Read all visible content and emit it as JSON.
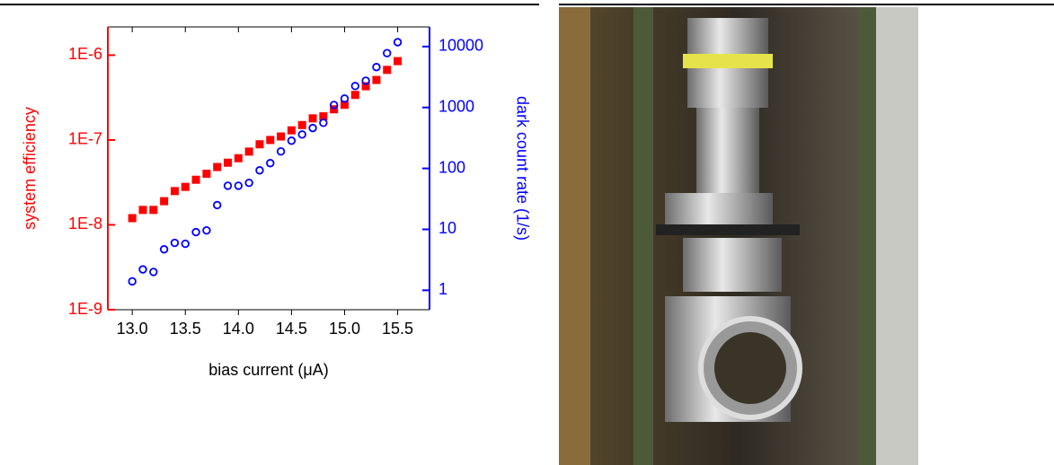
{
  "chart_data": {
    "type": "scatter",
    "xlabel": "bias current (μA)",
    "ylabel": "system efficiency",
    "y2label": "dark count rate (1/s)",
    "ylabel_color": "#ff0000",
    "y2label_color": "#0000ff",
    "x": [
      13.0,
      13.1,
      13.2,
      13.3,
      13.4,
      13.5,
      13.6,
      13.7,
      13.8,
      13.9,
      14.0,
      14.1,
      14.2,
      14.3,
      14.4,
      14.5,
      14.6,
      14.7,
      14.8,
      14.9,
      15.0,
      15.1,
      15.2,
      15.3,
      15.4,
      15.5
    ],
    "series": [
      {
        "color": "#ff0000",
        "marker": "square",
        "axis": "y",
        "values": [
          1.2e-08,
          1.5e-08,
          1.5e-08,
          1.9e-08,
          2.5e-08,
          2.8e-08,
          3.4e-08,
          4e-08,
          4.8e-08,
          5.4e-08,
          6.1e-08,
          7.3e-08,
          8.9e-08,
          1e-07,
          1.1e-07,
          1.3e-07,
          1.5e-07,
          1.8e-07,
          1.9e-07,
          2.3e-07,
          2.6e-07,
          3.4e-07,
          4.3e-07,
          5.1e-07,
          6.7e-07,
          8.5e-07
        ]
      },
      {
        "color": "#0000ff",
        "marker": "circle",
        "axis": "y2",
        "values": [
          1.4,
          2.2,
          2.0,
          4.7,
          6.0,
          5.8,
          9.0,
          9.6,
          25,
          52,
          52,
          58,
          93,
          122,
          190,
          285,
          360,
          460,
          560,
          1100,
          1400,
          2250,
          2750,
          4600,
          7800,
          11800
        ]
      }
    ],
    "xlim": [
      12.77,
      15.8
    ],
    "xticks": [
      {
        "value": 13.0,
        "label": "13.0"
      },
      {
        "value": 13.5,
        "label": "13.5"
      },
      {
        "value": 14.0,
        "label": "14.0"
      },
      {
        "value": 14.5,
        "label": "14.5"
      },
      {
        "value": 15.0,
        "label": "15.0"
      },
      {
        "value": 15.5,
        "label": "15.5"
      }
    ],
    "ylog": true,
    "ylim": [
      1e-09,
      2.15e-06
    ],
    "yticks": [
      {
        "value": 1e-09,
        "label": "1E-9"
      },
      {
        "value": 1e-08,
        "label": "1E-8"
      },
      {
        "value": 1e-07,
        "label": "1E-7"
      },
      {
        "value": 1e-06,
        "label": "1E-6"
      }
    ],
    "y2log": true,
    "y2lim": [
      0.48,
      21000
    ],
    "y2ticks": [
      1,
      10,
      100,
      1000,
      10000
    ]
  }
}
